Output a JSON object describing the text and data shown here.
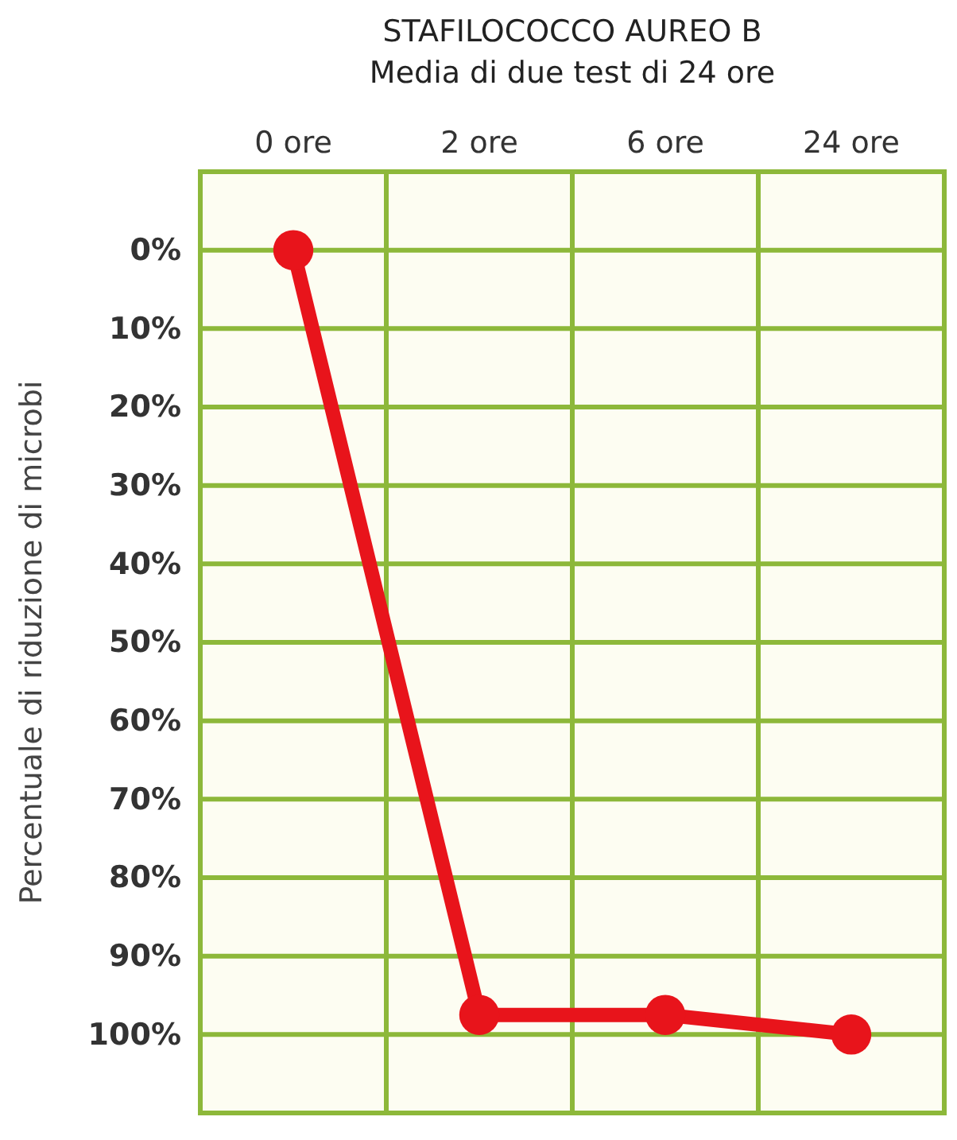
{
  "chart_data": {
    "type": "line",
    "title": "STAFILOCOCCO AUREO B",
    "subtitle": "Media di due test di 24 ore",
    "ylabel": "Percentuale di riduzione di microbi",
    "categories": [
      "0 ore",
      "2 ore",
      "6 ore",
      "24 ore"
    ],
    "series": [
      {
        "color": "#e8141b",
        "values": [
          0,
          97.5,
          97.5,
          100
        ]
      }
    ],
    "ylim": [
      110,
      -10
    ],
    "yticks": [
      {
        "value": 0,
        "label": "0%"
      },
      {
        "value": 10,
        "label": "10%"
      },
      {
        "value": 20,
        "label": "20%"
      },
      {
        "value": 30,
        "label": "30%"
      },
      {
        "value": 40,
        "label": "40%"
      },
      {
        "value": 50,
        "label": "50%"
      },
      {
        "value": 60,
        "label": "60%"
      },
      {
        "value": 70,
        "label": "70%"
      },
      {
        "value": 80,
        "label": "80%"
      },
      {
        "value": 90,
        "label": "90%"
      },
      {
        "value": 100,
        "label": "100%"
      }
    ],
    "grid": true,
    "marker": "circle",
    "line_style": "solid"
  }
}
